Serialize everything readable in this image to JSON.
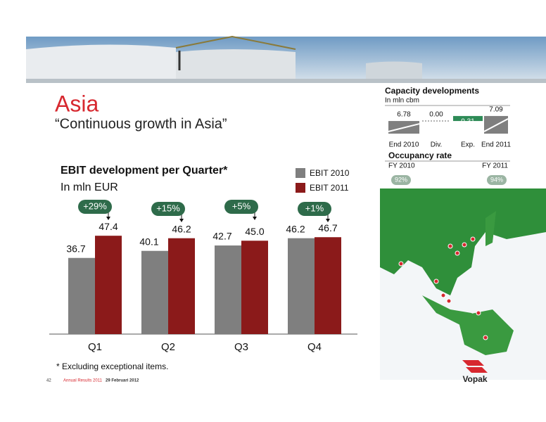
{
  "title": "Asia",
  "subtitle": "“Continuous growth in Asia”",
  "chart_data": [
    {
      "type": "bar",
      "title": "EBIT development per Quarter*",
      "subtitle": "In mln EUR",
      "categories": [
        "Q1",
        "Q2",
        "Q3",
        "Q4"
      ],
      "series": [
        {
          "name": "EBIT 2010",
          "color": "#7f7f7f",
          "values": [
            36.7,
            40.1,
            42.7,
            46.2
          ]
        },
        {
          "name": "EBIT 2011",
          "color": "#8b1a1a",
          "values": [
            47.4,
            46.2,
            45.0,
            46.7
          ],
          "value_labels": [
            "47.4",
            "46.2",
            "45.0",
            "46.7"
          ]
        }
      ],
      "annotations": [
        "+29%",
        "+15%",
        "+5%",
        "+1%"
      ]
    },
    {
      "type": "waterfall",
      "title": "Capacity developments",
      "subtitle": "In mln cbm",
      "categories": [
        "End 2010",
        "Div.",
        "Exp.",
        "End 2011"
      ],
      "values": [
        6.78,
        0.0,
        0.31,
        7.09
      ],
      "value_labels": [
        "6.78",
        "0.00",
        "0.31",
        "7.09"
      ],
      "color": "#7f7f7f",
      "increase_color": "#2e8b57"
    }
  ],
  "occupancy": {
    "title": "Occupancy rate",
    "periods": [
      "FY 2010",
      "FY 2011"
    ],
    "rates": [
      "92%",
      "94%"
    ]
  },
  "footnote": "*  Excluding exceptional items.",
  "footer": {
    "page": "42",
    "report": "Annual Results 2011",
    "date": "29 Februari 2012"
  },
  "logo": "Vopak"
}
